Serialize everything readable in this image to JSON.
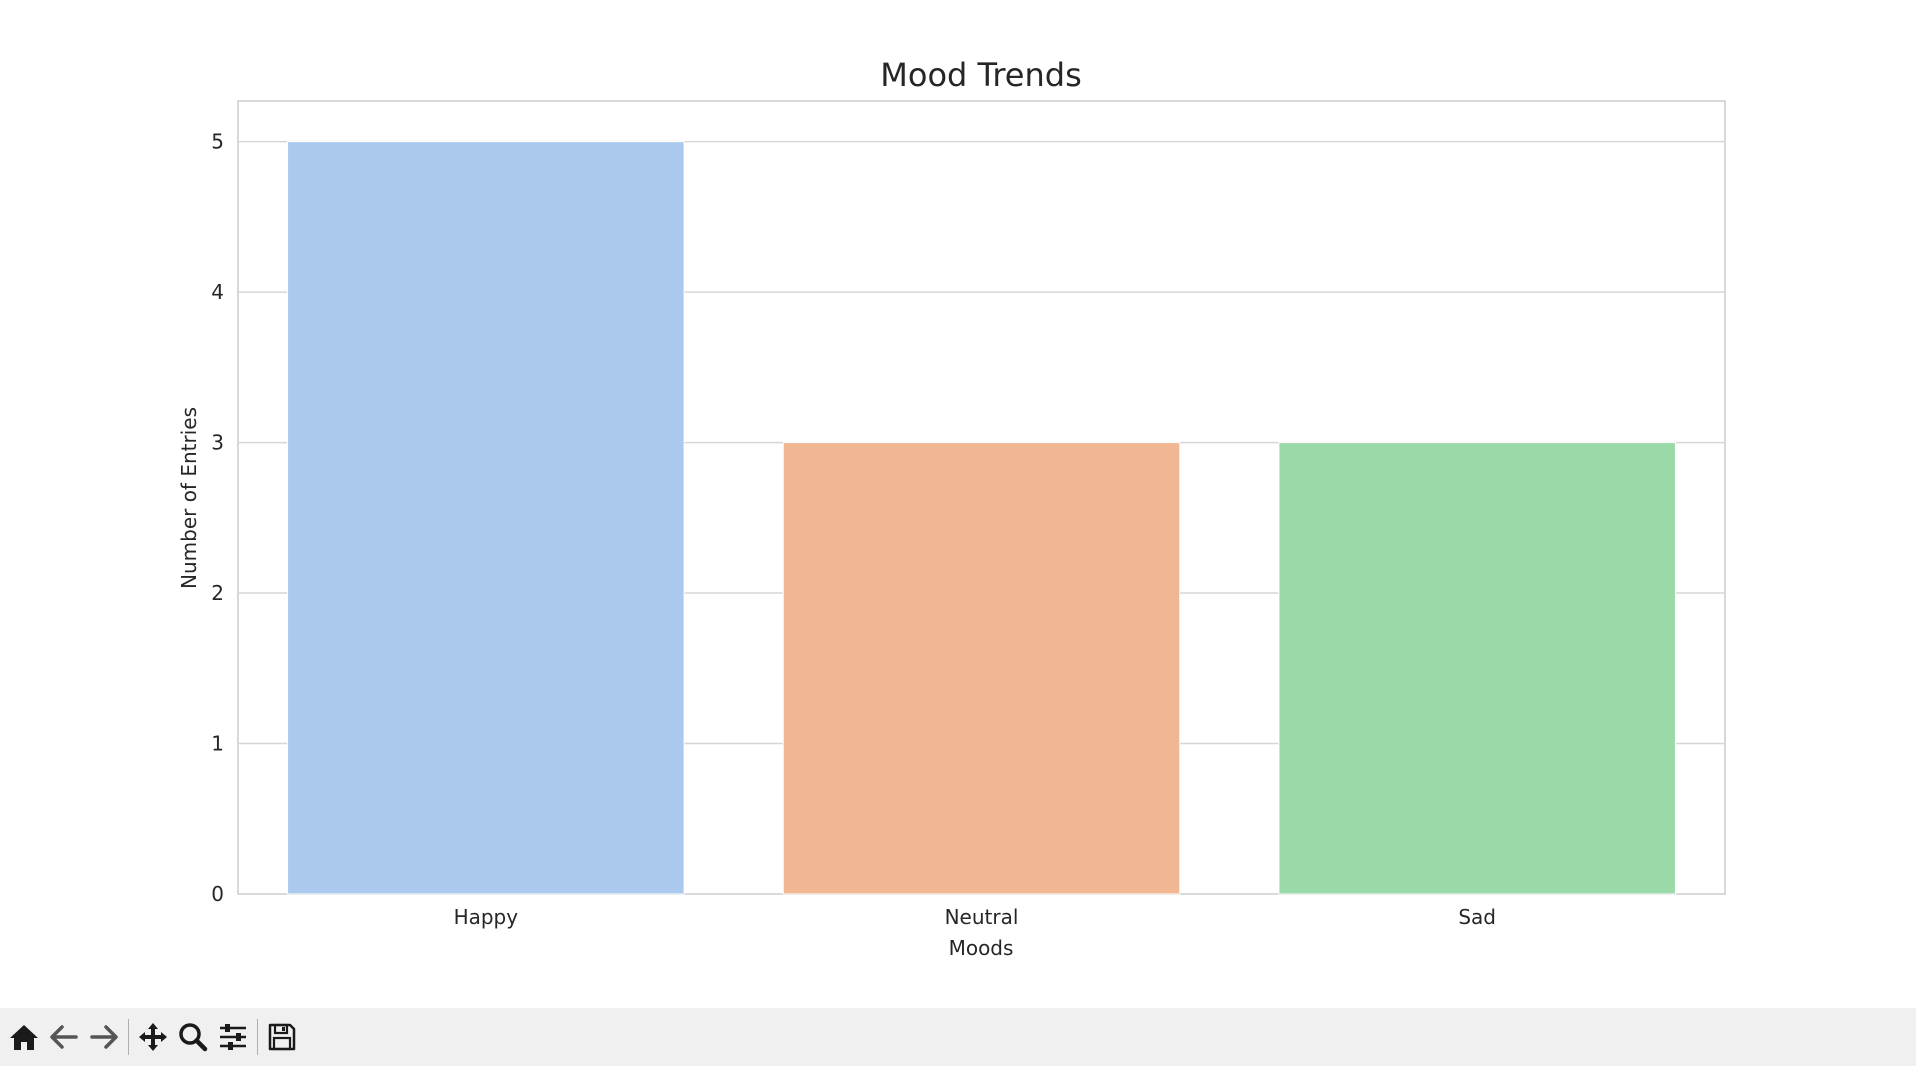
{
  "chart_data": {
    "type": "bar",
    "title": "Mood Trends",
    "xlabel": "Moods",
    "ylabel": "Number of Entries",
    "categories": [
      "Happy",
      "Neutral",
      "Sad"
    ],
    "values": [
      5,
      3,
      3
    ],
    "colors": [
      "#abc9ed",
      "#f1b793",
      "#9adaa8"
    ],
    "ylim": [
      0,
      5.27
    ],
    "yticks": [
      0,
      1,
      2,
      3,
      4,
      5
    ],
    "grid": true
  },
  "toolbar": {
    "items": [
      {
        "icon": "home-icon"
      },
      {
        "icon": "back-arrow-icon"
      },
      {
        "icon": "forward-arrow-icon"
      },
      {
        "icon": "pan-icon"
      },
      {
        "icon": "zoom-icon"
      },
      {
        "icon": "configure-subplots-icon"
      },
      {
        "icon": "save-icon"
      }
    ]
  }
}
